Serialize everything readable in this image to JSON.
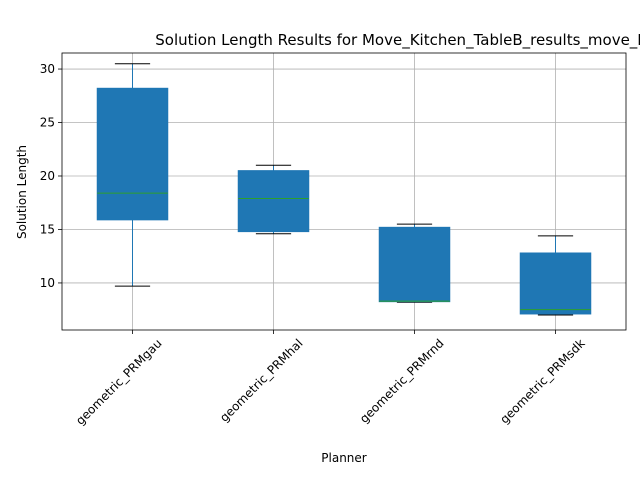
{
  "chart_data": {
    "type": "box",
    "title": "Solution Length Results for Move_Kitchen_TableB_results_move_Benchmark",
    "xlabel": "Planner",
    "ylabel": "Solution Length",
    "ylim": [
      5.6,
      31.5
    ],
    "yticks": [
      10,
      15,
      20,
      25,
      30
    ],
    "grid": true,
    "categories": [
      "geometric_PRMgau",
      "geometric_PRMhal",
      "geometric_PRMrnd",
      "geometric_PRMsdk"
    ],
    "boxes": [
      {
        "category": "geometric_PRMgau",
        "whisker_low": 9.7,
        "q1": 15.9,
        "median": 18.4,
        "q3": 28.2,
        "whisker_high": 30.5
      },
      {
        "category": "geometric_PRMhal",
        "whisker_low": 14.6,
        "q1": 14.8,
        "median": 17.9,
        "q3": 20.5,
        "whisker_high": 21.0
      },
      {
        "category": "geometric_PRMrnd",
        "whisker_low": 8.2,
        "q1": 8.25,
        "median": 8.3,
        "q3": 15.2,
        "whisker_high": 15.5
      },
      {
        "category": "geometric_PRMsdk",
        "whisker_low": 7.0,
        "q1": 7.1,
        "median": 7.5,
        "q3": 12.8,
        "whisker_high": 14.4
      }
    ],
    "colors": {
      "box": "#1f77b4",
      "median": "#2ca02c",
      "whisker": "#1f77b4",
      "cap": "#000000"
    }
  }
}
